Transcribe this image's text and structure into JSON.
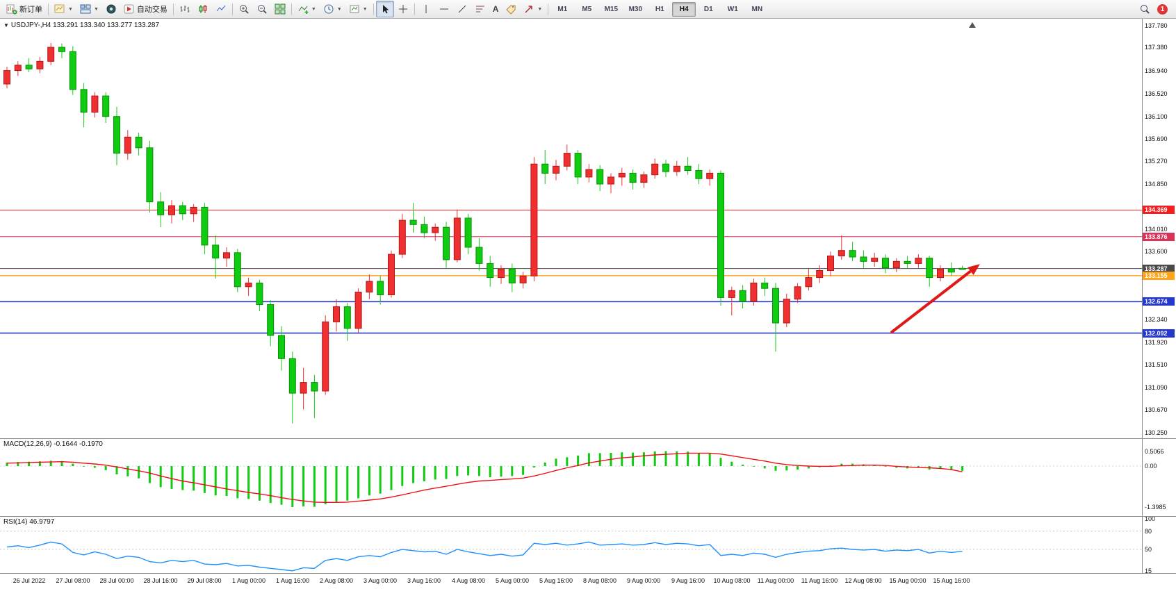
{
  "toolbar": {
    "new_order": "新订单",
    "autotrading": "自动交易",
    "timeframes": [
      "M1",
      "M5",
      "M15",
      "M30",
      "H1",
      "H4",
      "D1",
      "W1",
      "MN"
    ],
    "active_timeframe": "H4",
    "notification_count": "1"
  },
  "chart": {
    "header": "USDJPY-,H4 133.291 133.340 133.277 133.287",
    "price_axis": [
      137.78,
      137.38,
      136.94,
      136.52,
      136.1,
      135.69,
      135.27,
      134.85,
      134.01,
      133.6,
      132.34,
      131.92,
      131.51,
      131.09,
      130.67,
      130.25
    ],
    "hlines": [
      {
        "price": 134.369,
        "color": "#f02020",
        "width": 1
      },
      {
        "price": 133.876,
        "color": "#d83358",
        "width": 1
      },
      {
        "price": 133.287,
        "color": "#4a4a4a",
        "width": 1
      },
      {
        "price": 133.155,
        "color": "#ffa31a",
        "width": 1.5
      },
      {
        "price": 132.674,
        "color": "#2438cc",
        "width": 1.6
      },
      {
        "price": 132.092,
        "color": "#2438cc",
        "width": 1.6
      }
    ]
  },
  "indicators": {
    "macd_label": "MACD(12,26,9) -0.1644 -0.1970",
    "macd_scale": [
      [
        "0.5066",
        0.5066
      ],
      [
        "0.00",
        0
      ],
      [
        "-1.3985",
        -1.3985
      ]
    ],
    "rsi_label": "RSI(14) 46.9797",
    "rsi_scale": [
      [
        "100",
        100
      ],
      [
        "80",
        80
      ],
      [
        "50",
        50
      ],
      [
        "15",
        15
      ]
    ],
    "rsi_levels": [
      80,
      50
    ]
  },
  "colors": {
    "bull": "#f03030",
    "bull_border": "#b01818",
    "bear": "#10cc10",
    "bear_border": "#089008",
    "macd": "#10cc10",
    "signal": "#f01010",
    "rsi": "#1e90ff",
    "arrow": "#e01818",
    "accent_badge": "#e03535"
  },
  "chart_data": {
    "type": "candlestick",
    "symbol": "USDJPY-",
    "timeframe": "H4",
    "title": "USDJPY-,H4",
    "ohlc_current": {
      "open": "133.291",
      "high": "133.340",
      "low": "133.277",
      "close": "133.287"
    },
    "price_range": [
      130.25,
      137.78
    ],
    "candles": [
      [
        136.7,
        137.02,
        136.62,
        136.95
      ],
      [
        136.95,
        137.12,
        136.85,
        137.05
      ],
      [
        137.05,
        137.18,
        136.92,
        136.98
      ],
      [
        136.98,
        137.2,
        136.9,
        137.12
      ],
      [
        137.12,
        137.46,
        137.05,
        137.38
      ],
      [
        137.38,
        137.45,
        137.18,
        137.3
      ],
      [
        137.3,
        137.4,
        136.5,
        136.6
      ],
      [
        136.6,
        136.72,
        135.9,
        136.18
      ],
      [
        136.18,
        136.55,
        136.08,
        136.48
      ],
      [
        136.48,
        136.55,
        135.98,
        136.1
      ],
      [
        136.1,
        136.28,
        135.2,
        135.42
      ],
      [
        135.42,
        135.85,
        135.3,
        135.72
      ],
      [
        135.72,
        135.8,
        135.38,
        135.52
      ],
      [
        135.52,
        135.65,
        134.32,
        134.52
      ],
      [
        134.52,
        134.7,
        134.05,
        134.28
      ],
      [
        134.28,
        134.55,
        134.12,
        134.45
      ],
      [
        134.45,
        134.52,
        134.18,
        134.3
      ],
      [
        134.3,
        134.48,
        134.15,
        134.42
      ],
      [
        134.42,
        134.5,
        133.55,
        133.72
      ],
      [
        133.72,
        133.9,
        133.1,
        133.48
      ],
      [
        133.48,
        133.68,
        133.32,
        133.58
      ],
      [
        133.58,
        133.65,
        132.85,
        132.95
      ],
      [
        132.95,
        133.12,
        132.78,
        133.02
      ],
      [
        133.02,
        133.08,
        132.5,
        132.62
      ],
      [
        132.62,
        132.7,
        131.85,
        132.05
      ],
      [
        132.05,
        132.22,
        131.4,
        131.62
      ],
      [
        131.62,
        131.75,
        130.42,
        130.98
      ],
      [
        130.98,
        131.45,
        130.68,
        131.18
      ],
      [
        131.18,
        131.32,
        130.52,
        131.02
      ],
      [
        131.02,
        132.42,
        130.95,
        132.3
      ],
      [
        132.3,
        132.72,
        132.12,
        132.58
      ],
      [
        132.58,
        132.65,
        131.95,
        132.18
      ],
      [
        132.18,
        132.92,
        132.1,
        132.85
      ],
      [
        132.85,
        133.18,
        132.72,
        133.05
      ],
      [
        133.05,
        133.15,
        132.62,
        132.8
      ],
      [
        132.8,
        133.62,
        132.75,
        133.55
      ],
      [
        133.55,
        134.3,
        133.48,
        134.18
      ],
      [
        134.18,
        134.5,
        133.95,
        134.1
      ],
      [
        134.1,
        134.25,
        133.85,
        133.95
      ],
      [
        133.95,
        134.12,
        133.8,
        134.05
      ],
      [
        134.05,
        134.15,
        133.3,
        133.45
      ],
      [
        133.45,
        134.38,
        133.4,
        134.22
      ],
      [
        134.22,
        134.3,
        133.55,
        133.68
      ],
      [
        133.68,
        133.85,
        133.25,
        133.38
      ],
      [
        133.38,
        133.52,
        132.95,
        133.12
      ],
      [
        133.12,
        133.35,
        133.0,
        133.28
      ],
      [
        133.28,
        133.38,
        132.85,
        133.02
      ],
      [
        133.02,
        133.22,
        132.92,
        133.15
      ],
      [
        133.15,
        135.35,
        133.05,
        135.22
      ],
      [
        135.22,
        135.48,
        134.85,
        135.05
      ],
      [
        135.05,
        135.3,
        134.92,
        135.18
      ],
      [
        135.18,
        135.58,
        135.1,
        135.42
      ],
      [
        135.42,
        135.48,
        134.85,
        134.98
      ],
      [
        134.98,
        135.22,
        134.88,
        135.12
      ],
      [
        135.12,
        135.2,
        134.72,
        134.85
      ],
      [
        134.85,
        135.05,
        134.68,
        134.98
      ],
      [
        134.98,
        135.15,
        134.82,
        135.05
      ],
      [
        135.05,
        135.12,
        134.75,
        134.88
      ],
      [
        134.88,
        135.08,
        134.78,
        135.02
      ],
      [
        135.02,
        135.32,
        134.95,
        135.22
      ],
      [
        135.22,
        135.3,
        134.98,
        135.08
      ],
      [
        135.08,
        135.28,
        135.0,
        135.18
      ],
      [
        135.18,
        135.35,
        135.02,
        135.1
      ],
      [
        135.1,
        135.22,
        134.85,
        134.95
      ],
      [
        134.95,
        135.12,
        134.82,
        135.05
      ],
      [
        135.05,
        135.1,
        132.6,
        132.75
      ],
      [
        132.75,
        132.95,
        132.42,
        132.88
      ],
      [
        132.88,
        132.98,
        132.55,
        132.68
      ],
      [
        132.68,
        133.1,
        132.6,
        133.02
      ],
      [
        133.02,
        133.12,
        132.78,
        132.92
      ],
      [
        132.92,
        133.02,
        131.75,
        132.28
      ],
      [
        132.28,
        132.82,
        132.2,
        132.72
      ],
      [
        132.72,
        133.02,
        132.65,
        132.95
      ],
      [
        132.95,
        133.28,
        132.88,
        133.12
      ],
      [
        133.12,
        133.35,
        133.02,
        133.25
      ],
      [
        133.25,
        133.6,
        133.15,
        133.52
      ],
      [
        133.52,
        133.9,
        133.45,
        133.62
      ],
      [
        133.62,
        133.78,
        133.42,
        133.5
      ],
      [
        133.5,
        133.62,
        133.3,
        133.42
      ],
      [
        133.42,
        133.58,
        133.32,
        133.48
      ],
      [
        133.48,
        133.55,
        133.2,
        133.3
      ],
      [
        133.3,
        133.48,
        133.22,
        133.42
      ],
      [
        133.42,
        133.52,
        133.28,
        133.38
      ],
      [
        133.38,
        133.55,
        133.3,
        133.48
      ],
      [
        133.48,
        133.52,
        132.95,
        133.12
      ],
      [
        133.12,
        133.35,
        133.05,
        133.28
      ],
      [
        133.28,
        133.4,
        133.15,
        133.22
      ],
      [
        133.291,
        133.34,
        133.277,
        133.287
      ]
    ],
    "macd": [
      0.12,
      0.14,
      0.15,
      0.16,
      0.18,
      0.17,
      0.08,
      -0.02,
      -0.06,
      -0.14,
      -0.28,
      -0.35,
      -0.42,
      -0.58,
      -0.72,
      -0.78,
      -0.82,
      -0.84,
      -0.92,
      -1.0,
      -1.02,
      -1.1,
      -1.12,
      -1.18,
      -1.26,
      -1.32,
      -1.3985,
      -1.38,
      -1.39,
      -1.3,
      -1.22,
      -1.18,
      -1.1,
      -1.0,
      -0.94,
      -0.82,
      -0.68,
      -0.58,
      -0.52,
      -0.46,
      -0.44,
      -0.34,
      -0.32,
      -0.34,
      -0.38,
      -0.36,
      -0.34,
      -0.3,
      -0.05,
      0.12,
      0.25,
      0.3,
      0.36,
      0.44,
      0.44,
      0.45,
      0.47,
      0.46,
      0.47,
      0.5,
      0.5066,
      0.5,
      0.49,
      0.45,
      0.43,
      0.28,
      0.15,
      0.05,
      -0.02,
      -0.08,
      -0.16,
      -0.15,
      -0.12,
      -0.08,
      -0.04,
      0.02,
      0.08,
      0.08,
      0.06,
      0.04,
      -0.02,
      -0.06,
      -0.08,
      -0.06,
      -0.12,
      -0.1,
      -0.14,
      -0.1644
    ],
    "macd_signal": [
      0.1,
      0.11,
      0.12,
      0.13,
      0.14,
      0.15,
      0.13,
      0.1,
      0.07,
      0.03,
      -0.03,
      -0.1,
      -0.16,
      -0.24,
      -0.34,
      -0.43,
      -0.51,
      -0.57,
      -0.64,
      -0.71,
      -0.78,
      -0.84,
      -0.9,
      -0.95,
      -1.01,
      -1.08,
      -1.14,
      -1.19,
      -1.23,
      -1.24,
      -1.24,
      -1.23,
      -1.2,
      -1.16,
      -1.12,
      -1.06,
      -0.98,
      -0.9,
      -0.82,
      -0.75,
      -0.69,
      -0.62,
      -0.56,
      -0.51,
      -0.49,
      -0.46,
      -0.44,
      -0.41,
      -0.34,
      -0.25,
      -0.15,
      -0.06,
      0.02,
      0.11,
      0.17,
      0.23,
      0.28,
      0.31,
      0.35,
      0.38,
      0.4,
      0.42,
      0.44,
      0.44,
      0.44,
      0.41,
      0.35,
      0.29,
      0.23,
      0.17,
      0.1,
      0.05,
      0.02,
      0.0,
      -0.01,
      -0.01,
      0.01,
      0.02,
      0.03,
      0.03,
      0.02,
      -0.01,
      -0.03,
      -0.05,
      -0.06,
      -0.08,
      -0.12,
      -0.197
    ],
    "rsi": [
      54,
      56,
      53,
      57,
      62,
      59,
      45,
      41,
      46,
      42,
      35,
      39,
      37,
      30,
      28,
      32,
      30,
      32,
      26,
      25,
      27,
      23,
      24,
      21,
      19,
      17,
      15,
      20,
      19,
      32,
      35,
      32,
      38,
      40,
      38,
      45,
      50,
      48,
      46,
      47,
      42,
      50,
      46,
      43,
      40,
      42,
      39,
      41,
      60,
      58,
      60,
      57,
      59,
      62,
      57,
      58,
      59,
      57,
      58,
      61,
      58,
      60,
      59,
      56,
      58,
      40,
      42,
      40,
      44,
      42,
      37,
      42,
      45,
      47,
      48,
      51,
      52,
      50,
      49,
      50,
      47,
      49,
      48,
      50,
      44,
      47,
      45,
      46.98
    ],
    "time_labels": [
      "26 Jul 2022",
      "27 Jul 08:00",
      "28 Jul 00:00",
      "28 Jul 16:00",
      "29 Jul 08:00",
      "1 Aug 00:00",
      "1 Aug 16:00",
      "2 Aug 08:00",
      "3 Aug 00:00",
      "3 Aug 16:00",
      "4 Aug 08:00",
      "5 Aug 00:00",
      "5 Aug 16:00",
      "8 Aug 08:00",
      "9 Aug 00:00",
      "9 Aug 16:00",
      "10 Aug 08:00",
      "11 Aug 00:00",
      "11 Aug 16:00",
      "12 Aug 08:00",
      "15 Aug 00:00",
      "15 Aug 16:00"
    ],
    "label_first_candle_index": 2,
    "label_step": 4,
    "arrow": {
      "from_index": 80.5,
      "from_price": 132.1,
      "to_index": 88.6,
      "to_price": 133.37
    }
  }
}
